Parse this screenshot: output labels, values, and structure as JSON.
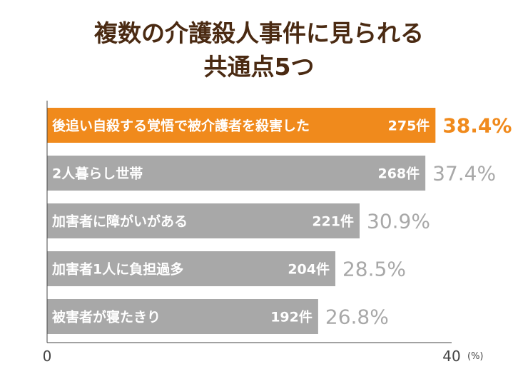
{
  "title": {
    "line1": "複数の介護殺人事件に見られる",
    "line2": "共通点5つ"
  },
  "colors": {
    "highlight_bar": "#f08a1c",
    "normal_bar": "#a8a8a8",
    "highlight_pct": "#f08a1c",
    "normal_pct": "#a8a8a8",
    "title": "#4a2a12",
    "axis": "#444444"
  },
  "chart_data": {
    "type": "bar",
    "orientation": "horizontal",
    "categories": [
      "後追い自殺する覚悟で被介護者を殺害した",
      "2人暮らし世帯",
      "加害者に障がいがある",
      "加害者1人に負担過多",
      "被害者が寝たきり"
    ],
    "counts": [
      "275件",
      "268件",
      "221件",
      "204件",
      "192件"
    ],
    "values": [
      38.4,
      37.4,
      30.9,
      28.5,
      26.8
    ],
    "value_labels": [
      "38.4%",
      "37.4%",
      "30.9%",
      "28.5%",
      "26.8%"
    ],
    "highlight_index": 0,
    "xlim": [
      0,
      40
    ],
    "x_ticks": [
      "0",
      "40"
    ],
    "unit": "(%)",
    "grid": false,
    "legend": "none"
  }
}
